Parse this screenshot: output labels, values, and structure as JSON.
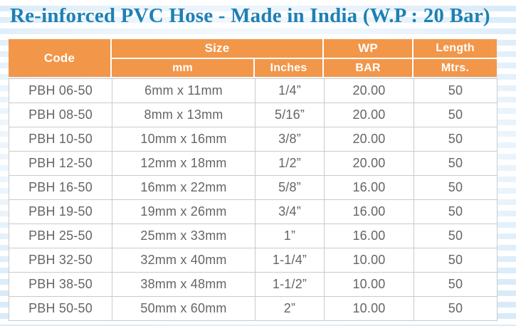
{
  "title": "Re-inforced PVC Hose - Made in India (W.P : 20 Bar)",
  "colors": {
    "title_blue": "#1e80b4",
    "header_orange": "#f2964a",
    "header_text": "#ffffff",
    "data_text": "#636569",
    "grid_line": "#c8cacc",
    "background_stripe": "#d9ebf9"
  },
  "table": {
    "header": {
      "code": "Code",
      "size": "Size",
      "size_mm": "mm",
      "size_inches": "Inches",
      "wp": "WP",
      "wp_bar": "BAR",
      "length": "Length",
      "length_mtrs": "Mtrs."
    },
    "rows": [
      {
        "code": "PBH 06-50",
        "mm": "6mm x 11mm",
        "inches": "1/4”",
        "bar": "20.00",
        "mtrs": "50"
      },
      {
        "code": "PBH 08-50",
        "mm": "8mm x 13mm",
        "inches": "5/16”",
        "bar": "20.00",
        "mtrs": "50"
      },
      {
        "code": "PBH 10-50",
        "mm": "10mm x 16mm",
        "inches": "3/8”",
        "bar": "20.00",
        "mtrs": "50"
      },
      {
        "code": "PBH 12-50",
        "mm": "12mm x 18mm",
        "inches": "1/2”",
        "bar": "20.00",
        "mtrs": "50"
      },
      {
        "code": "PBH 16-50",
        "mm": "16mm x 22mm",
        "inches": "5/8”",
        "bar": "16.00",
        "mtrs": "50"
      },
      {
        "code": "PBH 19-50",
        "mm": "19mm x 26mm",
        "inches": "3/4”",
        "bar": "16.00",
        "mtrs": "50"
      },
      {
        "code": "PBH 25-50",
        "mm": "25mm x 33mm",
        "inches": "1”",
        "bar": "16.00",
        "mtrs": "50"
      },
      {
        "code": "PBH 32-50",
        "mm": "32mm x 40mm",
        "inches": "1-1/4”",
        "bar": "10.00",
        "mtrs": "50"
      },
      {
        "code": "PBH 38-50",
        "mm": "38mm x 48mm",
        "inches": "1-1/2”",
        "bar": "10.00",
        "mtrs": "50"
      },
      {
        "code": "PBH 50-50",
        "mm": "50mm x 60mm",
        "inches": "2”",
        "bar": "10.00",
        "mtrs": "50"
      }
    ]
  },
  "chart_data": {
    "type": "table",
    "title": "Re-inforced PVC Hose - Made in India (W.P : 20 Bar)",
    "columns": [
      "Code",
      "Size mm",
      "Size Inches",
      "WP BAR",
      "Length Mtrs."
    ],
    "rows": [
      [
        "PBH 06-50",
        "6mm x 11mm",
        "1/4”",
        "20.00",
        "50"
      ],
      [
        "PBH 08-50",
        "8mm x 13mm",
        "5/16”",
        "20.00",
        "50"
      ],
      [
        "PBH 10-50",
        "10mm x 16mm",
        "3/8”",
        "20.00",
        "50"
      ],
      [
        "PBH 12-50",
        "12mm x 18mm",
        "1/2”",
        "20.00",
        "50"
      ],
      [
        "PBH 16-50",
        "16mm x 22mm",
        "5/8”",
        "16.00",
        "50"
      ],
      [
        "PBH 19-50",
        "19mm x 26mm",
        "3/4”",
        "16.00",
        "50"
      ],
      [
        "PBH 25-50",
        "25mm x 33mm",
        "1”",
        "16.00",
        "50"
      ],
      [
        "PBH 32-50",
        "32mm x 40mm",
        "1-1/4”",
        "10.00",
        "50"
      ],
      [
        "PBH 38-50",
        "38mm x 48mm",
        "1-1/2”",
        "10.00",
        "50"
      ],
      [
        "PBH 50-50",
        "50mm x 60mm",
        "2”",
        "10.00",
        "50"
      ]
    ]
  }
}
